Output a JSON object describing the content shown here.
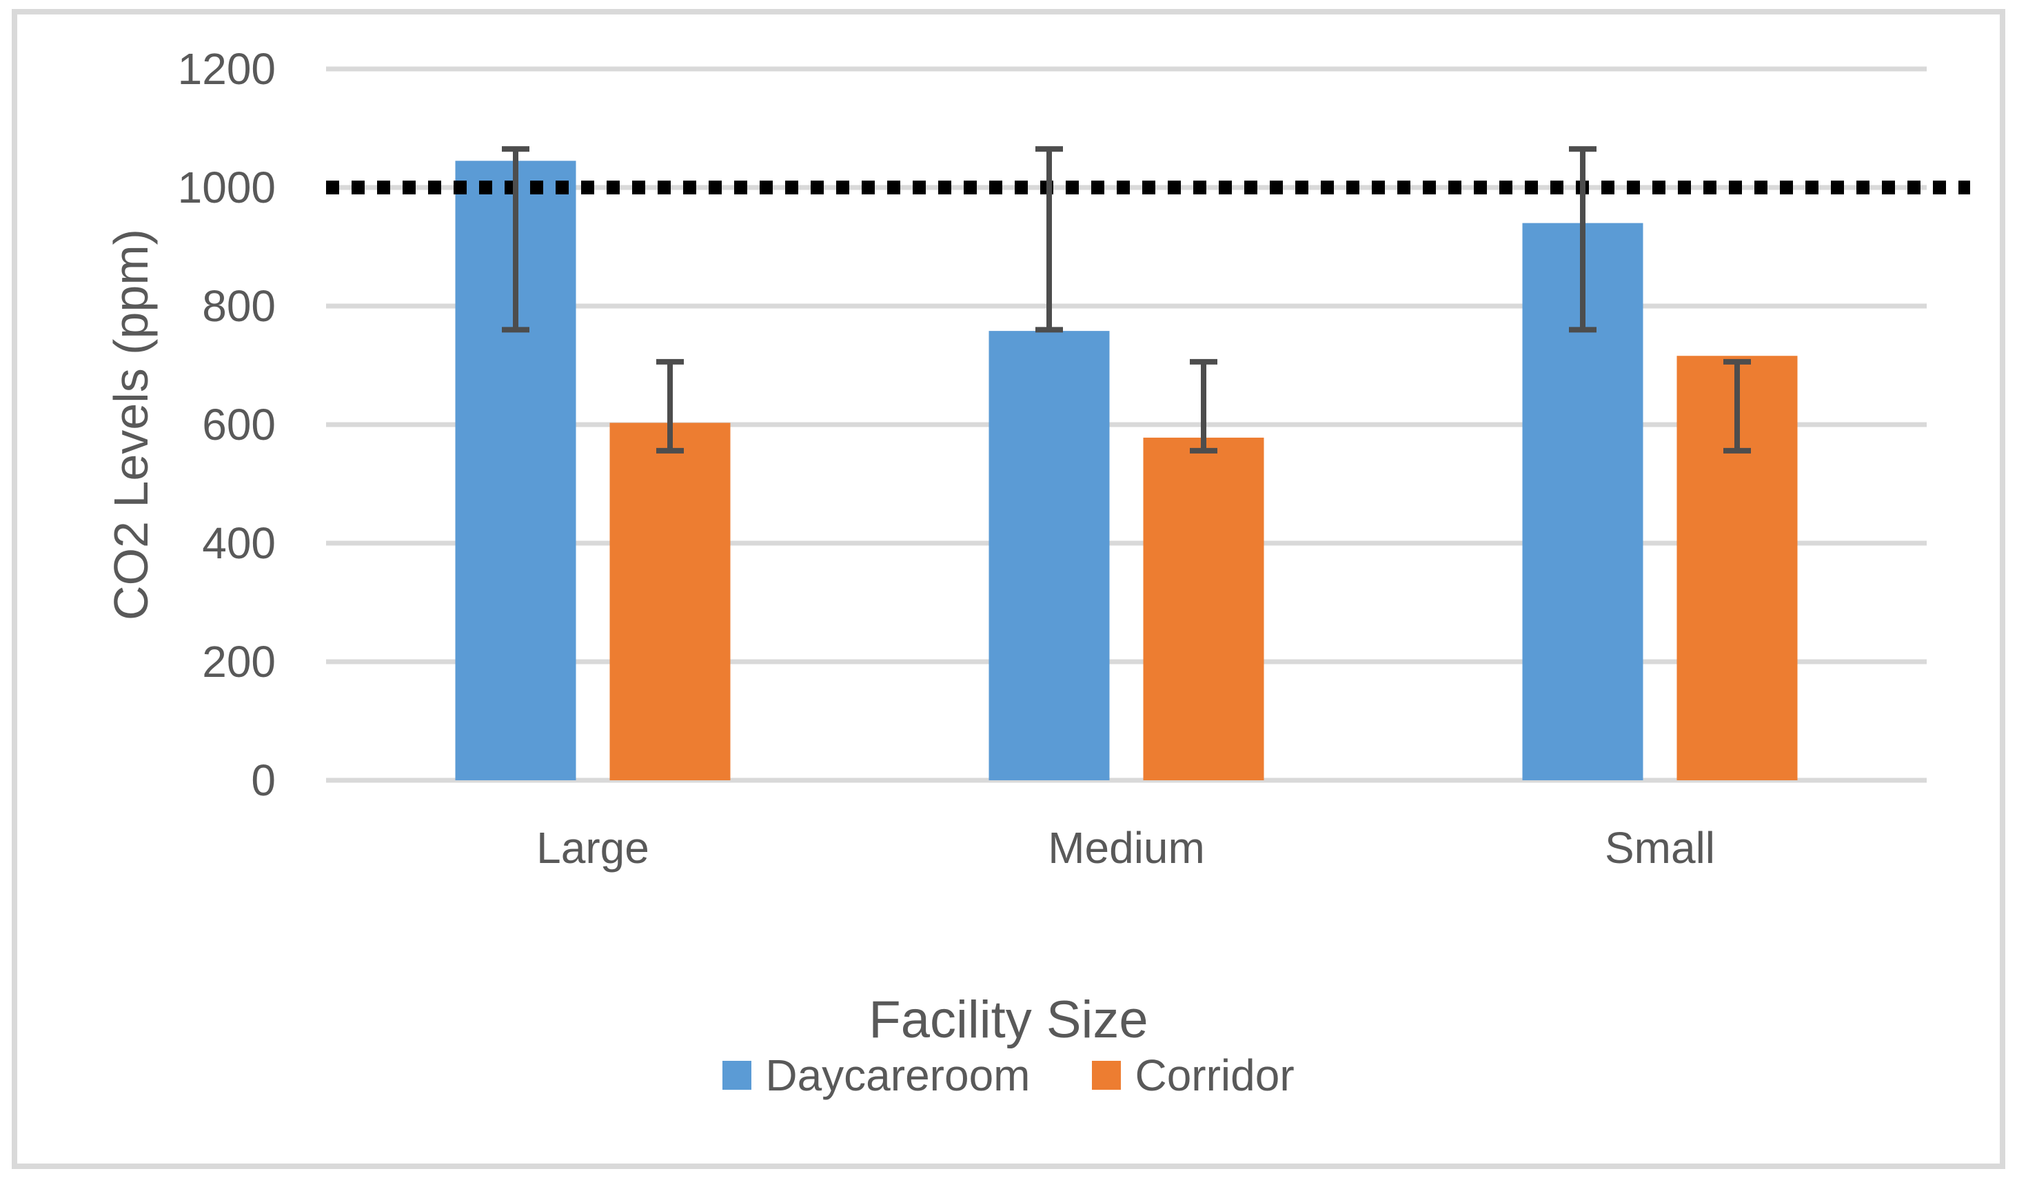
{
  "chart_data": {
    "type": "bar",
    "title": "",
    "xlabel": "Facility Size",
    "ylabel": "CO2 Levels (ppm)",
    "categories": [
      "Large",
      "Medium",
      "Small"
    ],
    "series": [
      {
        "name": "Daycareroom",
        "color": "#5B9BD5",
        "values": [
          1045,
          758,
          940
        ],
        "error_bars": [
          {
            "low": 760,
            "high": 1065
          },
          {
            "low": 760,
            "high": 1065
          },
          {
            "low": 760,
            "high": 1065
          }
        ]
      },
      {
        "name": "Corridor",
        "color": "#ED7D31",
        "values": [
          603,
          578,
          716
        ],
        "error_bars": [
          {
            "low": 556,
            "high": 706
          },
          {
            "low": 556,
            "high": 706
          },
          {
            "low": 556,
            "high": 706
          }
        ]
      }
    ],
    "ylim": [
      0,
      1200
    ],
    "yticks": [
      0,
      200,
      400,
      600,
      800,
      1000,
      1200
    ],
    "threshold_line": {
      "value": 1000,
      "style": "dashed",
      "color": "#000000"
    },
    "grid": true,
    "legend_position": "bottom",
    "colors": {
      "gridline": "#D9D9D9",
      "axis_text": "#595959",
      "error_bar": "#4D4D4D",
      "frame_border": "#D9D9D9"
    }
  }
}
